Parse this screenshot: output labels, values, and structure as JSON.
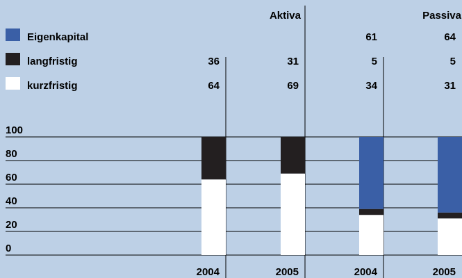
{
  "chart_data": {
    "type": "bar",
    "stacked": true,
    "groups": [
      "Aktiva",
      "Passiva"
    ],
    "categories": [
      "2004",
      "2005",
      "2004",
      "2005"
    ],
    "category_groups": [
      "Aktiva",
      "Aktiva",
      "Passiva",
      "Passiva"
    ],
    "series": [
      {
        "name": "kurzfristig",
        "values": [
          64,
          69,
          34,
          31
        ]
      },
      {
        "name": "langfristig",
        "values": [
          36,
          31,
          5,
          5
        ]
      },
      {
        "name": "Eigenkapital",
        "values": [
          null,
          null,
          61,
          64
        ]
      }
    ],
    "table_rows": [
      [
        "",
        "",
        "61",
        "64"
      ],
      [
        "36",
        "31",
        "5",
        "5"
      ],
      [
        "64",
        "69",
        "34",
        "31"
      ]
    ],
    "yticks": [
      0,
      20,
      40,
      60,
      80,
      100
    ],
    "ylim": [
      0,
      100
    ],
    "grid": true,
    "legend_position": "top-left",
    "colors": {
      "background": "#bdd0e6",
      "Eigenkapital": "#3a5fa6",
      "langfristig": "#231f20",
      "kurzfristig": "#ffffff"
    }
  }
}
